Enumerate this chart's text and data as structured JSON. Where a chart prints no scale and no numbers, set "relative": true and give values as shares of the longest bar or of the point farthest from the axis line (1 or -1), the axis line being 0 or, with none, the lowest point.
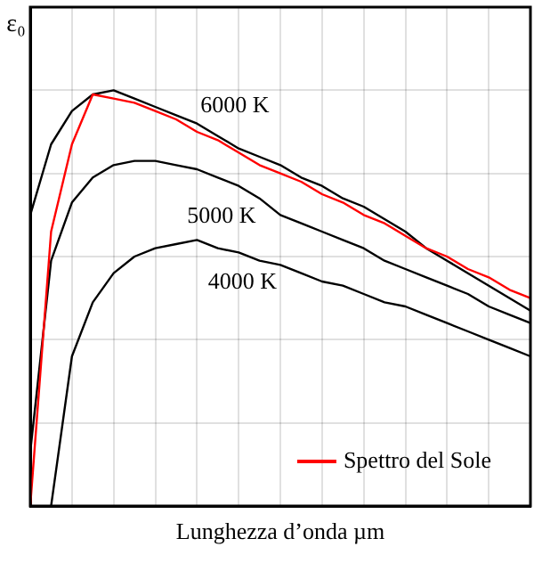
{
  "chart_data": {
    "type": "line",
    "relative": true,
    "xlabel": "Lunghezza d’onda µm",
    "ylabel": "ε₀",
    "grid": true,
    "legend": "bottom right",
    "tick_labels": false,
    "marker": "none",
    "line_style": "solid",
    "categories": [
      null,
      null,
      null,
      null,
      null,
      null,
      null,
      null,
      null,
      null,
      null,
      null,
      null,
      null,
      null,
      null,
      null,
      null,
      null,
      null,
      null,
      null,
      null,
      null,
      null
    ],
    "series": [
      {
        "name": "6000 K",
        "color": "#000000",
        "values": [
          0.7,
          0.87,
          0.95,
          0.99,
          1,
          0.98,
          0.96,
          0.94,
          0.92,
          0.89,
          0.86,
          0.84,
          0.82,
          0.79,
          0.77,
          0.74,
          0.72,
          0.69,
          0.66,
          0.62,
          0.59,
          0.56,
          0.53,
          0.5,
          0.47
        ]
      },
      {
        "name": "5000 K",
        "color": "#000000",
        "values": [
          0.13,
          0.59,
          0.73,
          0.79,
          0.82,
          0.83,
          0.83,
          0.82,
          0.81,
          0.79,
          0.77,
          0.74,
          0.7,
          0.68,
          0.66,
          0.64,
          0.62,
          0.59,
          0.57,
          0.55,
          0.53,
          0.51,
          0.48,
          0.46,
          0.44
        ]
      },
      {
        "name": "4000 K",
        "color": "#000000",
        "values": [
          null,
          0,
          0.36,
          0.49,
          0.56,
          0.6,
          0.62,
          0.63,
          0.64,
          0.62,
          0.61,
          0.59,
          0.58,
          0.56,
          0.54,
          0.53,
          0.51,
          0.49,
          0.48,
          0.46,
          0.44,
          0.42,
          0.4,
          0.38,
          0.36
        ]
      },
      {
        "name": "Spettro del Sole",
        "color": "#ff0000",
        "values": [
          0,
          0.66,
          0.87,
          0.99,
          0.98,
          0.97,
          0.95,
          0.93,
          0.9,
          0.88,
          0.85,
          0.82,
          0.8,
          0.78,
          0.75,
          0.73,
          0.7,
          0.68,
          0.65,
          0.62,
          0.6,
          0.57,
          0.55,
          0.52,
          0.5
        ]
      }
    ]
  }
}
